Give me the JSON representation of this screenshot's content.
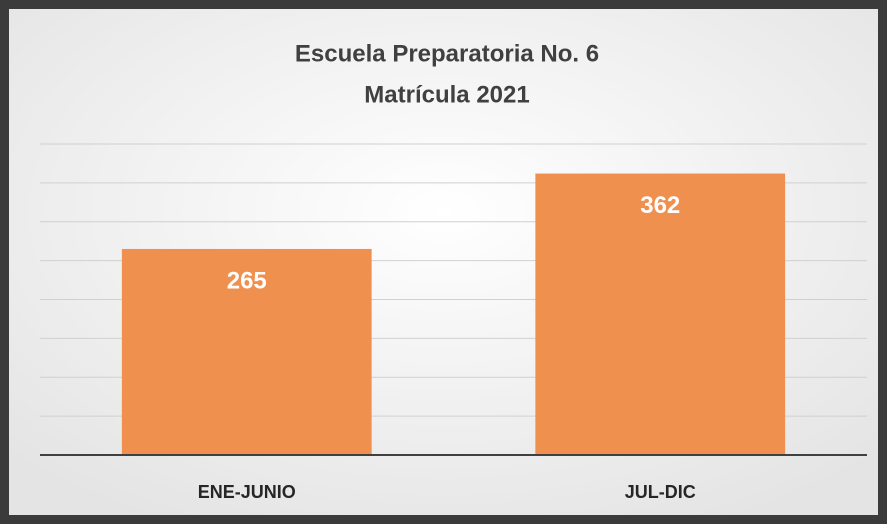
{
  "chart_data": {
    "type": "bar",
    "title": [
      "Escuela Preparatoria No. 6",
      "Matrícula 2021"
    ],
    "categories": [
      "ENE-JUNIO",
      "JUL-DIC"
    ],
    "values": [
      265,
      362
    ],
    "color": "#f0904f",
    "ylim": [
      0,
      400
    ],
    "yticks": [
      0,
      50,
      100,
      150,
      200,
      250,
      300,
      350,
      400
    ],
    "grid": true
  }
}
